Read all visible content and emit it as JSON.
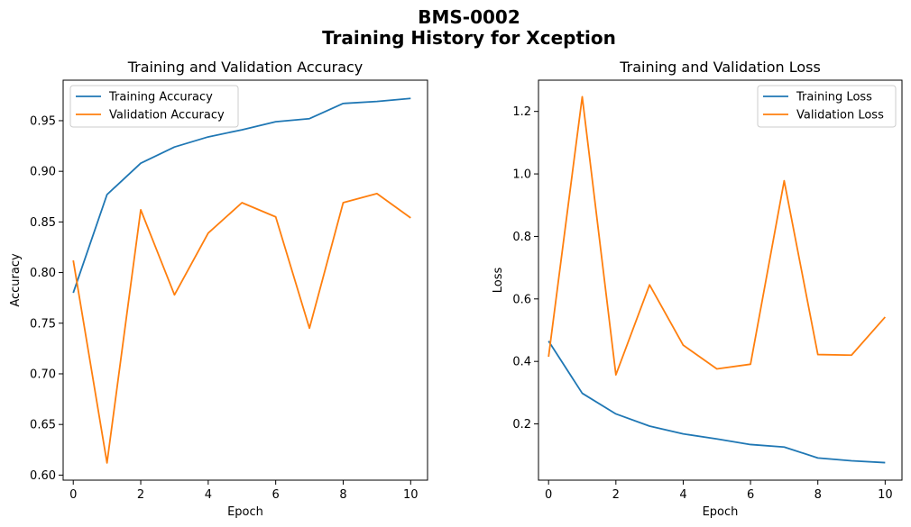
{
  "figure": {
    "title_line1": "BMS-0002",
    "title_line2": "Training History for Xception"
  },
  "chart_data": [
    {
      "type": "line",
      "title": "Training and Validation Accuracy",
      "xlabel": "Epoch",
      "ylabel": "Accuracy",
      "x": [
        0,
        1,
        2,
        3,
        4,
        5,
        6,
        7,
        8,
        9,
        10
      ],
      "xlim": [
        -0.3,
        10.5
      ],
      "ylim": [
        0.595,
        0.99
      ],
      "xticks": [
        0,
        2,
        4,
        6,
        8,
        10
      ],
      "yticks": [
        0.6,
        0.65,
        0.7,
        0.75,
        0.8,
        0.85,
        0.9,
        0.95
      ],
      "ytick_labels": [
        "0.60",
        "0.65",
        "0.70",
        "0.75",
        "0.80",
        "0.85",
        "0.90",
        "0.95"
      ],
      "legend_position": "upper-left",
      "grid": false,
      "series": [
        {
          "name": "Training Accuracy",
          "color": "#1f77b4",
          "values": [
            0.78,
            0.877,
            0.908,
            0.924,
            0.934,
            0.941,
            0.949,
            0.952,
            0.967,
            0.969,
            0.972
          ]
        },
        {
          "name": "Validation Accuracy",
          "color": "#ff7f0e",
          "values": [
            0.812,
            0.612,
            0.862,
            0.778,
            0.839,
            0.869,
            0.855,
            0.745,
            0.869,
            0.878,
            0.854
          ]
        }
      ]
    },
    {
      "type": "line",
      "title": "Training and Validation Loss",
      "xlabel": "Epoch",
      "ylabel": "Loss",
      "x": [
        0,
        1,
        2,
        3,
        4,
        5,
        6,
        7,
        8,
        9,
        10
      ],
      "xlim": [
        -0.3,
        10.5
      ],
      "ylim": [
        0.02,
        1.3
      ],
      "xticks": [
        0,
        2,
        4,
        6,
        8,
        10
      ],
      "yticks": [
        0.2,
        0.4,
        0.6,
        0.8,
        1.0,
        1.2
      ],
      "ytick_labels": [
        "0.2",
        "0.4",
        "0.6",
        "0.8",
        "1.0",
        "1.2"
      ],
      "legend_position": "upper-right",
      "grid": false,
      "series": [
        {
          "name": "Training Loss",
          "color": "#1f77b4",
          "values": [
            0.465,
            0.298,
            0.232,
            0.193,
            0.168,
            0.152,
            0.134,
            0.126,
            0.091,
            0.082,
            0.076
          ]
        },
        {
          "name": "Validation Loss",
          "color": "#ff7f0e",
          "values": [
            0.415,
            1.247,
            0.357,
            0.645,
            0.452,
            0.376,
            0.391,
            0.978,
            0.422,
            0.42,
            0.542
          ]
        }
      ]
    }
  ]
}
